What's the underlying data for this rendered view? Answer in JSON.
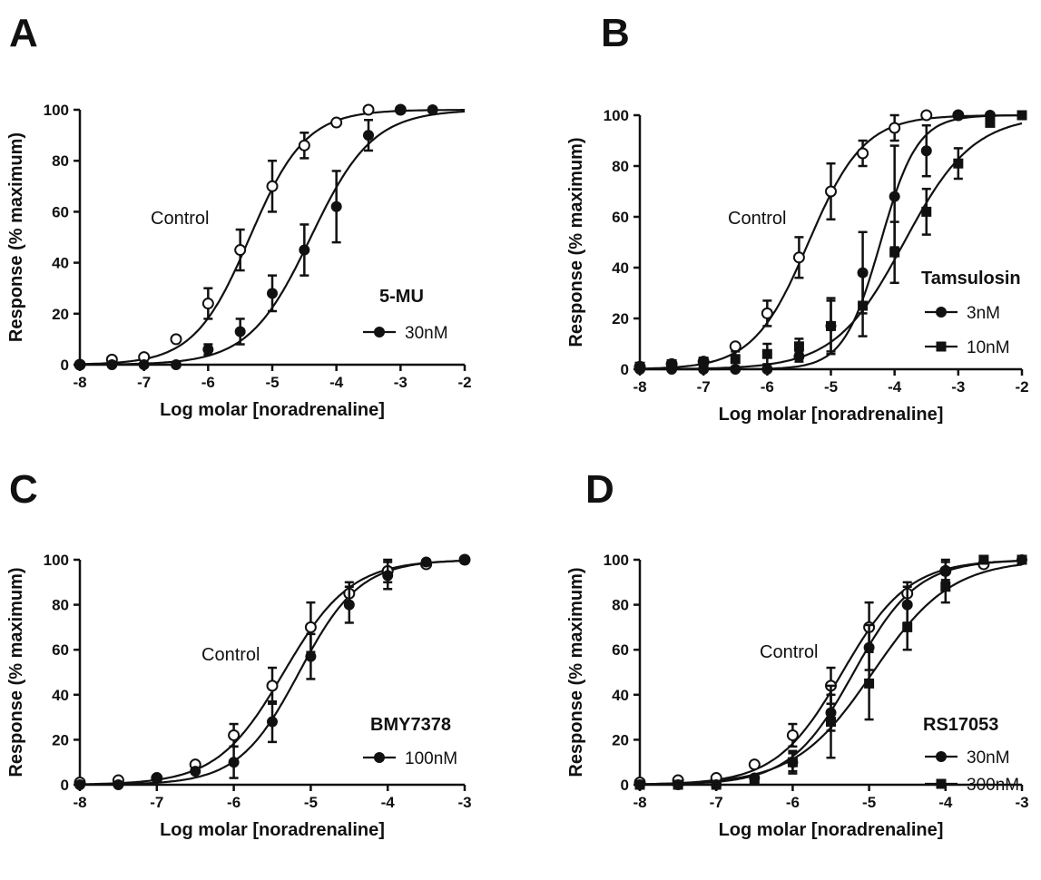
{
  "chart_data": [
    {
      "panel": "A",
      "type": "scatter",
      "xlabel": "Log molar [noradrenaline]",
      "ylabel": "Response (% maximum)",
      "xlim": [
        -8,
        -2
      ],
      "ylim": [
        0,
        100
      ],
      "xticks": [
        -8,
        -7,
        -6,
        -5,
        -4,
        -3,
        -2
      ],
      "yticks": [
        0,
        20,
        40,
        60,
        80,
        100
      ],
      "annotation": "Control",
      "legend_title": "5-MU",
      "series": [
        {
          "name": "Control",
          "marker": "open-circle",
          "x": [
            -8,
            -7.5,
            -7,
            -6.5,
            -6,
            -5.5,
            -5,
            -4.5,
            -4,
            -3.5,
            -3
          ],
          "y": [
            0,
            2,
            3,
            10,
            24,
            45,
            70,
            86,
            95,
            100,
            100
          ],
          "err": [
            0,
            0,
            0,
            0,
            6,
            8,
            10,
            5,
            0,
            0,
            0
          ],
          "fit": {
            "top": 100,
            "logec50": -5.35,
            "hill": 1.0
          }
        },
        {
          "name": "30nM",
          "marker": "filled-circle",
          "x": [
            -8,
            -7.5,
            -7,
            -6.5,
            -6,
            -5.5,
            -5,
            -4.5,
            -4,
            -3.5,
            -3,
            -2.5
          ],
          "y": [
            0,
            0,
            0,
            0,
            6,
            13,
            28,
            45,
            62,
            90,
            100,
            100
          ],
          "err": [
            0,
            0,
            0,
            0,
            2,
            5,
            7,
            10,
            14,
            6,
            0,
            0
          ],
          "fit": {
            "top": 100,
            "logec50": -4.4,
            "hill": 0.9
          }
        }
      ]
    },
    {
      "panel": "B",
      "type": "scatter",
      "xlabel": "Log molar [noradrenaline]",
      "ylabel": "Response (% maximum)",
      "xlim": [
        -8,
        -2
      ],
      "ylim": [
        0,
        100
      ],
      "xticks": [
        -8,
        -7,
        -6,
        -5,
        -4,
        -3,
        -2
      ],
      "yticks": [
        0,
        20,
        40,
        60,
        80,
        100
      ],
      "annotation": "Control",
      "legend_title": "Tamsulosin",
      "series": [
        {
          "name": "Control",
          "marker": "open-circle",
          "x": [
            -8,
            -7.5,
            -7,
            -6.5,
            -6,
            -5.5,
            -5,
            -4.5,
            -4,
            -3.5,
            -3
          ],
          "y": [
            1,
            2,
            3,
            9,
            22,
            44,
            70,
            85,
            95,
            100,
            100
          ],
          "err": [
            0,
            0,
            0,
            0,
            5,
            8,
            11,
            5,
            5,
            0,
            0
          ],
          "fit": {
            "top": 100,
            "logec50": -5.35,
            "hill": 1.0
          }
        },
        {
          "name": "3nM",
          "marker": "filled-circle",
          "x": [
            -8,
            -7.5,
            -7,
            -6.5,
            -6,
            -5.5,
            -5,
            -4.5,
            -4,
            -3.5,
            -3,
            -2.5
          ],
          "y": [
            0,
            0,
            0,
            0,
            0,
            5,
            17,
            38,
            68,
            86,
            100,
            100
          ],
          "err": [
            0,
            0,
            0,
            0,
            0,
            2,
            10,
            16,
            20,
            10,
            0,
            0
          ],
          "fit": {
            "top": 100,
            "logec50": -4.22,
            "hill": 1.5
          }
        },
        {
          "name": "10nM",
          "marker": "filled-square",
          "x": [
            -8,
            -7.5,
            -7,
            -6.5,
            -6,
            -5.5,
            -5,
            -4.5,
            -4,
            -3.5,
            -3,
            -2.5,
            -2
          ],
          "y": [
            1,
            2,
            3,
            4,
            6,
            9,
            17,
            25,
            46,
            62,
            81,
            97,
            100
          ],
          "err": [
            0,
            0,
            0,
            3,
            4,
            3,
            11,
            12,
            12,
            9,
            6,
            0,
            0
          ],
          "fit": {
            "top": 100,
            "logec50": -3.85,
            "hill": 0.8
          }
        }
      ]
    },
    {
      "panel": "C",
      "type": "scatter",
      "xlabel": "Log molar [noradrenaline]",
      "ylabel": "Response (% maximum)",
      "xlim": [
        -8,
        -3
      ],
      "ylim": [
        0,
        100
      ],
      "xticks": [
        -8,
        -7,
        -6,
        -5,
        -4,
        -3
      ],
      "yticks": [
        0,
        20,
        40,
        60,
        80,
        100
      ],
      "annotation": "Control",
      "legend_title": "BMY7378",
      "series": [
        {
          "name": "Control",
          "marker": "open-circle",
          "x": [
            -8,
            -7.5,
            -7,
            -6.5,
            -6,
            -5.5,
            -5,
            -4.5,
            -4,
            -3.5,
            -3
          ],
          "y": [
            1,
            2,
            3,
            9,
            22,
            44,
            70,
            85,
            95,
            98,
            100
          ],
          "err": [
            0,
            0,
            0,
            0,
            5,
            8,
            11,
            5,
            5,
            0,
            0
          ],
          "fit": {
            "top": 100,
            "logec50": -5.35,
            "hill": 1.0
          }
        },
        {
          "name": "100nM",
          "marker": "filled-circle",
          "x": [
            -8,
            -7.5,
            -7,
            -6.5,
            -6,
            -5.5,
            -5,
            -4.5,
            -4,
            -3.5,
            -3
          ],
          "y": [
            0,
            0,
            3,
            6,
            10,
            28,
            57,
            80,
            93,
            99,
            100
          ],
          "err": [
            0,
            0,
            0,
            0,
            7,
            9,
            10,
            8,
            6,
            0,
            0
          ],
          "fit": {
            "top": 100,
            "logec50": -5.15,
            "hill": 1.1
          }
        }
      ]
    },
    {
      "panel": "D",
      "type": "scatter",
      "xlabel": "Log molar [noradrenaline]",
      "ylabel": "Response (% maximum)",
      "xlim": [
        -8,
        -3
      ],
      "ylim": [
        0,
        100
      ],
      "xticks": [
        -8,
        -7,
        -6,
        -5,
        -4,
        -3
      ],
      "yticks": [
        0,
        20,
        40,
        60,
        80,
        100
      ],
      "annotation": "Control",
      "legend_title": "RS17053",
      "series": [
        {
          "name": "Control",
          "marker": "open-circle",
          "x": [
            -8,
            -7.5,
            -7,
            -6.5,
            -6,
            -5.5,
            -5,
            -4.5,
            -4,
            -3.5
          ],
          "y": [
            1,
            2,
            3,
            9,
            22,
            44,
            70,
            85,
            95,
            98
          ],
          "err": [
            0,
            0,
            0,
            0,
            5,
            8,
            11,
            5,
            5,
            0
          ],
          "fit": {
            "top": 100,
            "logec50": -5.35,
            "hill": 1.0
          }
        },
        {
          "name": "30nM",
          "marker": "filled-circle",
          "x": [
            -8,
            -7.5,
            -7,
            -6.5,
            -6,
            -5.5,
            -5,
            -4.5,
            -4,
            -3
          ],
          "y": [
            0,
            0,
            0,
            3,
            10,
            32,
            61,
            80,
            95,
            100
          ],
          "err": [
            0,
            0,
            0,
            0,
            4,
            8,
            10,
            8,
            4,
            0
          ],
          "fit": {
            "top": 100,
            "logec50": -5.2,
            "hill": 1.05
          }
        },
        {
          "name": "300nM",
          "marker": "filled-square",
          "x": [
            -8,
            -7.5,
            -7,
            -6.5,
            -6,
            -5.5,
            -5,
            -4.5,
            -4,
            -3.5,
            -3
          ],
          "y": [
            0,
            0,
            0,
            2,
            10,
            28,
            45,
            70,
            88,
            100,
            100
          ],
          "err": [
            0,
            0,
            0,
            0,
            5,
            16,
            16,
            10,
            7,
            0,
            0
          ],
          "fit": {
            "top": 100,
            "logec50": -4.95,
            "hill": 0.85
          }
        }
      ]
    }
  ]
}
